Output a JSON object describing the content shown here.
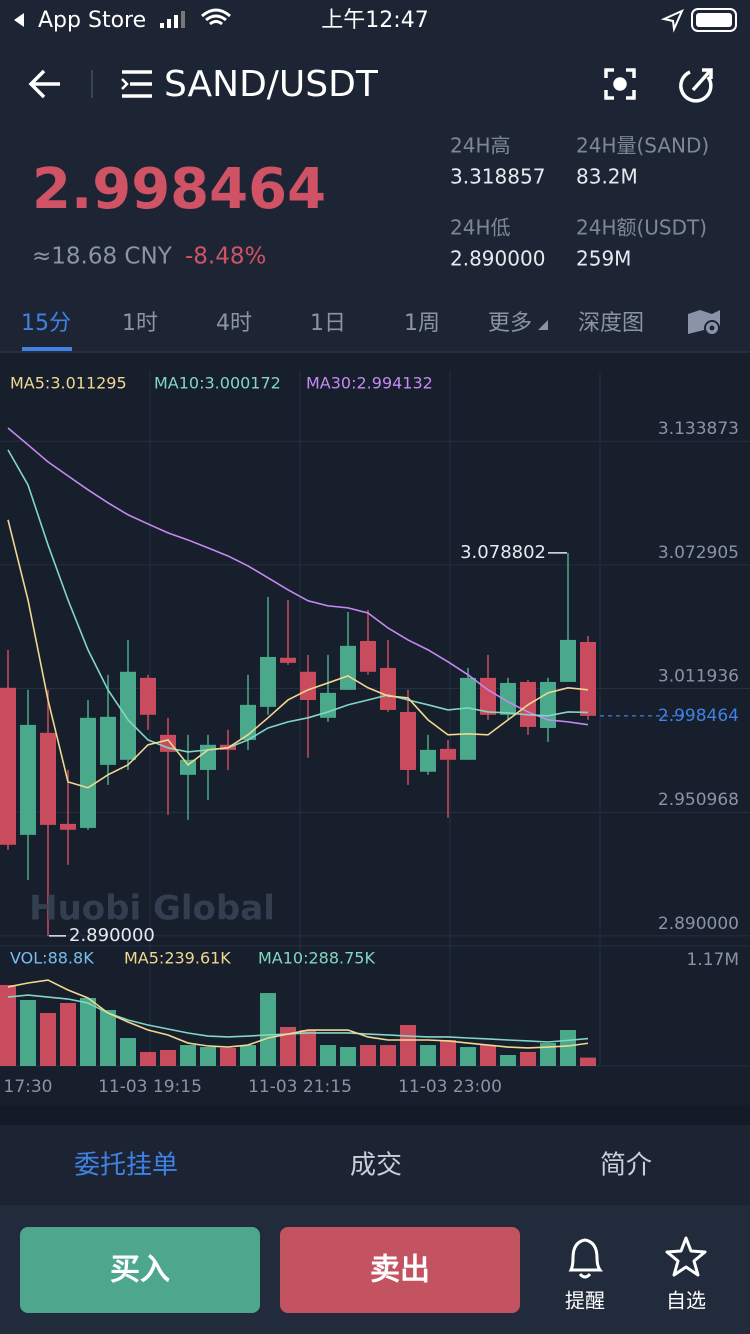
{
  "status_bar": {
    "carrier": "App Store",
    "time": "上午12:47"
  },
  "header": {
    "pair": "SAND/USDT"
  },
  "ticker": {
    "price": "2.998464",
    "cny": "≈18.68 CNY",
    "change": "-8.48%",
    "stats": [
      {
        "label": "24H高",
        "value": "3.318857"
      },
      {
        "label": "24H量(SAND)",
        "value": "83.2M"
      },
      {
        "label": "24H低",
        "value": "2.890000"
      },
      {
        "label": "24H额(USDT)",
        "value": "259M"
      }
    ]
  },
  "tabs": [
    "15分",
    "1时",
    "4时",
    "1日",
    "1周",
    "更多",
    "深度图"
  ],
  "chart": {
    "type": "candlestick",
    "ma_legend": [
      "MA5:3.011295",
      "MA10:3.000172",
      "MA30:2.994132"
    ],
    "ylim": [
      2.885,
      3.168
    ],
    "yticks": [
      3.133873,
      3.072905,
      3.011936,
      2.950968,
      {
        "value": 2.89,
        "label": "2.890000"
      }
    ],
    "last_price": 2.998464,
    "high_label": "3.078802",
    "low_label": "2.890000",
    "watermark": "Huobi Global",
    "candles": [
      {
        "open": 3.0123,
        "high": 3.031,
        "low": 2.9324,
        "close": 2.9349
      },
      {
        "open": 2.9398,
        "high": 3.0113,
        "low": 2.9176,
        "close": 2.994
      },
      {
        "open": 2.9901,
        "high": 3.0113,
        "low": 2.89,
        "close": 2.9447
      },
      {
        "open": 2.9452,
        "high": 2.9718,
        "low": 2.925,
        "close": 2.9423
      },
      {
        "open": 2.9432,
        "high": 3.0063,
        "low": 2.9423,
        "close": 2.9975
      },
      {
        "open": 2.9743,
        "high": 3.0187,
        "low": 2.9644,
        "close": 2.998
      },
      {
        "open": 2.9768,
        "high": 3.0359,
        "low": 2.9718,
        "close": 3.0202
      },
      {
        "open": 3.0172,
        "high": 3.0187,
        "low": 2.9916,
        "close": 2.999
      },
      {
        "open": 2.9891,
        "high": 2.9975,
        "low": 2.9497,
        "close": 2.9807
      },
      {
        "open": 2.9694,
        "high": 2.9891,
        "low": 2.9472,
        "close": 2.9768
      },
      {
        "open": 2.9718,
        "high": 2.9891,
        "low": 2.957,
        "close": 2.9842
      },
      {
        "open": 2.9842,
        "high": 2.9916,
        "low": 2.9718,
        "close": 2.9817
      },
      {
        "open": 2.9866,
        "high": 3.0187,
        "low": 2.9817,
        "close": 3.0039
      },
      {
        "open": 3.0029,
        "high": 3.0571,
        "low": 2.999,
        "close": 3.0275
      },
      {
        "open": 3.0271,
        "high": 3.0556,
        "low": 3.0236,
        "close": 3.0246
      },
      {
        "open": 3.0202,
        "high": 3.0285,
        "low": 2.9778,
        "close": 3.0063
      },
      {
        "open": 2.9975,
        "high": 3.0285,
        "low": 2.9955,
        "close": 3.0098
      },
      {
        "open": 3.0113,
        "high": 3.0497,
        "low": 3.0113,
        "close": 3.033
      },
      {
        "open": 3.0354,
        "high": 3.0507,
        "low": 3.0187,
        "close": 3.0202
      },
      {
        "open": 3.0221,
        "high": 3.0359,
        "low": 3.0004,
        "close": 3.0014
      },
      {
        "open": 3.0004,
        "high": 3.0113,
        "low": 2.9644,
        "close": 2.9718
      },
      {
        "open": 2.9709,
        "high": 2.9891,
        "low": 2.9694,
        "close": 2.9817
      },
      {
        "open": 2.9822,
        "high": 2.9866,
        "low": 2.9482,
        "close": 2.9768
      },
      {
        "open": 2.9768,
        "high": 3.0221,
        "low": 2.9768,
        "close": 3.0172
      },
      {
        "open": 3.0172,
        "high": 3.0285,
        "low": 2.9965,
        "close": 2.999
      },
      {
        "open": 2.999,
        "high": 3.0172,
        "low": 2.9965,
        "close": 3.0147
      },
      {
        "open": 3.0152,
        "high": 3.0162,
        "low": 2.9891,
        "close": 2.993
      },
      {
        "open": 2.9925,
        "high": 3.0172,
        "low": 2.9856,
        "close": 3.0152
      },
      {
        "open": 3.0152,
        "high": 3.078802,
        "low": 3.0152,
        "close": 3.0359
      },
      {
        "open": 3.0349,
        "high": 3.0379,
        "low": 2.9965,
        "close": 2.998464
      }
    ],
    "ma5": [
      3.0951,
      3.0556,
      3.0063,
      2.9659,
      2.963,
      2.9694,
      2.9743,
      2.9842,
      2.9866,
      2.9743,
      2.9817,
      2.9827,
      2.9891,
      2.9975,
      3.0063,
      3.0113,
      3.0147,
      3.0182,
      3.0123,
      3.0083,
      3.0073,
      2.9965,
      2.9891,
      2.9896,
      2.9891,
      2.9965,
      3.0039,
      3.0098,
      3.0123,
      3.011295
    ],
    "ma10": [
      3.1296,
      3.1123,
      3.0828,
      3.0556,
      3.031,
      3.0113,
      2.9965,
      2.9866,
      2.9827,
      2.9807,
      2.9817,
      2.9827,
      2.9866,
      2.9925,
      2.9955,
      2.9975,
      3.0004,
      3.0039,
      3.0063,
      3.0088,
      3.0063,
      3.0039,
      3.0014,
      3.0024,
      3.0004,
      2.9999,
      2.999,
      2.9985,
      3.0004,
      3.000172
    ],
    "ma30": [
      3.1404,
      3.1321,
      3.1237,
      3.1168,
      3.1099,
      3.1035,
      3.0976,
      3.0931,
      3.0887,
      3.0852,
      3.0813,
      3.0773,
      3.0724,
      3.0665,
      3.0606,
      3.0552,
      3.0527,
      3.0517,
      3.0492,
      3.0418,
      3.0359,
      3.031,
      3.0251,
      3.0187,
      3.0113,
      3.0054,
      3.0004,
      2.9965,
      2.9955,
      2.994132
    ],
    "volume": {
      "legend": [
        "VOL:88.8K",
        "MA5:239.61K",
        "MA10:288.75K"
      ],
      "ylim": [
        0,
        1170000
      ],
      "max_label": "1.17M",
      "values": [
        854000,
        696000,
        559000,
        664000,
        717000,
        590000,
        295000,
        148000,
        169000,
        221000,
        200000,
        190000,
        221000,
        769000,
        411000,
        379000,
        221000,
        200000,
        221000,
        221000,
        432000,
        221000,
        274000,
        200000,
        221000,
        116000,
        148000,
        242000,
        379000,
        88800
      ],
      "ma5": [
        833000,
        875000,
        906000,
        801000,
        717000,
        559000,
        464000,
        379000,
        327000,
        242000,
        211000,
        200000,
        221000,
        295000,
        337000,
        379000,
        379000,
        379000,
        306000,
        274000,
        274000,
        274000,
        264000,
        242000,
        221000,
        200000,
        190000,
        200000,
        211000,
        239610
      ],
      "ma10": [
        727000,
        748000,
        727000,
        706000,
        664000,
        559000,
        485000,
        432000,
        390000,
        348000,
        316000,
        306000,
        316000,
        327000,
        337000,
        348000,
        348000,
        348000,
        337000,
        327000,
        316000,
        306000,
        306000,
        295000,
        285000,
        274000,
        264000,
        253000,
        270000,
        288750
      ]
    },
    "time_labels": [
      "17:30",
      "11-03 19:15",
      "11-03 21:15",
      "11-03 23:00"
    ]
  },
  "bottom_tabs": [
    "委托挂单",
    "成交",
    "简介"
  ],
  "buttons": {
    "buy": "买入",
    "sell": "卖出"
  },
  "actions": [
    "提醒",
    "自选"
  ]
}
